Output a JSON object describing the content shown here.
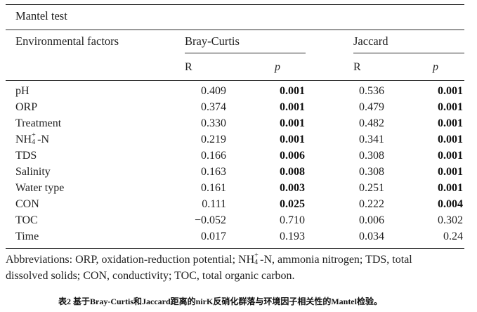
{
  "table": {
    "title": "Mantel test",
    "factor_header": "Environmental factors",
    "groups": [
      "Bray-Curtis",
      "Jaccard"
    ],
    "sub_headers": [
      "R",
      "p",
      "R",
      "p"
    ],
    "rows": [
      {
        "factor": "pH",
        "factor_base": "",
        "factor_sub": "",
        "factor_sup": "",
        "factor_suffix": "",
        "bc_r": "0.409",
        "bc_p": "0.001",
        "bc_p_bold": true,
        "j_r": "0.536",
        "j_p": "0.001",
        "j_p_bold": true
      },
      {
        "factor": "ORP",
        "factor_base": "",
        "factor_sub": "",
        "factor_sup": "",
        "factor_suffix": "",
        "bc_r": "0.374",
        "bc_p": "0.001",
        "bc_p_bold": true,
        "j_r": "0.479",
        "j_p": "0.001",
        "j_p_bold": true
      },
      {
        "factor": "Treatment",
        "factor_base": "",
        "factor_sub": "",
        "factor_sup": "",
        "factor_suffix": "",
        "bc_r": "0.330",
        "bc_p": "0.001",
        "bc_p_bold": true,
        "j_r": "0.482",
        "j_p": "0.001",
        "j_p_bold": true
      },
      {
        "factor": "",
        "factor_base": "NH",
        "factor_sub": "4",
        "factor_sup": "+",
        "factor_suffix": "-N",
        "bc_r": "0.219",
        "bc_p": "0.001",
        "bc_p_bold": true,
        "j_r": "0.341",
        "j_p": "0.001",
        "j_p_bold": true
      },
      {
        "factor": "TDS",
        "factor_base": "",
        "factor_sub": "",
        "factor_sup": "",
        "factor_suffix": "",
        "bc_r": "0.166",
        "bc_p": "0.006",
        "bc_p_bold": true,
        "j_r": "0.308",
        "j_p": "0.001",
        "j_p_bold": true
      },
      {
        "factor": "Salinity",
        "factor_base": "",
        "factor_sub": "",
        "factor_sup": "",
        "factor_suffix": "",
        "bc_r": "0.163",
        "bc_p": "0.008",
        "bc_p_bold": true,
        "j_r": "0.308",
        "j_p": "0.001",
        "j_p_bold": true
      },
      {
        "factor": "Water type",
        "factor_base": "",
        "factor_sub": "",
        "factor_sup": "",
        "factor_suffix": "",
        "bc_r": "0.161",
        "bc_p": "0.003",
        "bc_p_bold": true,
        "j_r": "0.251",
        "j_p": "0.001",
        "j_p_bold": true
      },
      {
        "factor": "CON",
        "factor_base": "",
        "factor_sub": "",
        "factor_sup": "",
        "factor_suffix": "",
        "bc_r": "0.111",
        "bc_p": "0.025",
        "bc_p_bold": true,
        "j_r": "0.222",
        "j_p": "0.004",
        "j_p_bold": true
      },
      {
        "factor": "TOC",
        "factor_base": "",
        "factor_sub": "",
        "factor_sup": "",
        "factor_suffix": "",
        "bc_r": "−0.052",
        "bc_p": "0.710",
        "bc_p_bold": false,
        "j_r": "0.006",
        "j_p": "0.302",
        "j_p_bold": false
      },
      {
        "factor": "Time",
        "factor_base": "",
        "factor_sub": "",
        "factor_sup": "",
        "factor_suffix": "",
        "bc_r": "0.017",
        "bc_p": "0.193",
        "bc_p_bold": false,
        "j_r": "0.034",
        "j_p": "0.24",
        "j_p_bold": false
      }
    ]
  },
  "abbreviations": {
    "line1_a": "Abbreviations: ORP, oxidation-reduction potential; NH",
    "line1_sub": "4",
    "line1_sup": "+",
    "line1_b": "-N, ammonia nitrogen; TDS, total",
    "line2": "dissolved solids; CON, conductivity; TOC, total organic carbon."
  },
  "caption": "表2 基于Bray-Curtis和Jaccard距离的nirK反硝化群落与环境因子相关性的Mantel检验。"
}
